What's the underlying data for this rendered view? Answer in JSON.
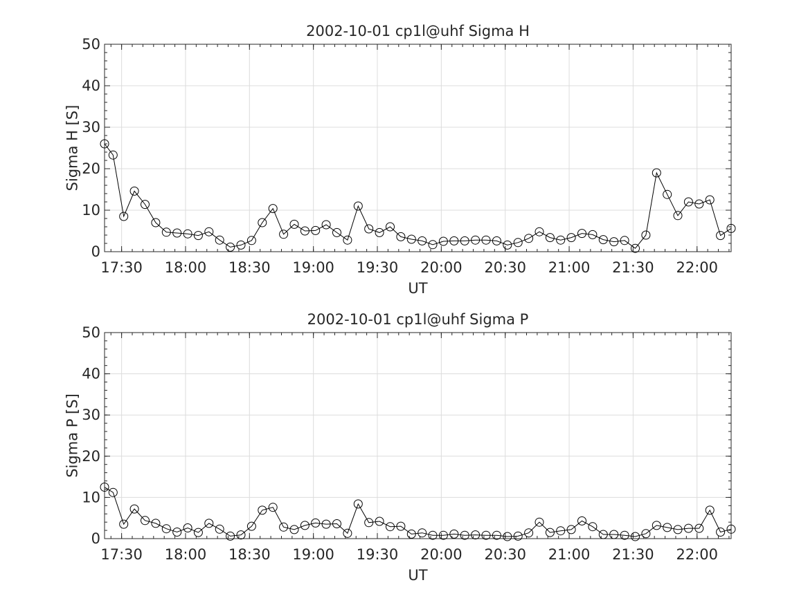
{
  "chart_data": [
    {
      "type": "line",
      "title": "2002-10-01  cp1l@uhf Sigma H",
      "xlabel": "UT",
      "ylabel": "Sigma H [S]",
      "ylim": [
        0,
        50
      ],
      "yticks": [
        "0",
        "10",
        "20",
        "30",
        "40",
        "50"
      ],
      "xlim": [
        "17:22",
        "22:16"
      ],
      "xticks": [
        "17:30",
        "18:00",
        "18:30",
        "19:00",
        "19:30",
        "20:00",
        "20:30",
        "21:00",
        "21:30",
        "22:00"
      ],
      "grid": true,
      "marker": "open-circle",
      "line_color": "#000000",
      "x": [
        "17:22",
        "17:26",
        "17:31",
        "17:36",
        "17:41",
        "17:46",
        "17:51",
        "17:56",
        "18:01",
        "18:06",
        "18:11",
        "18:16",
        "18:21",
        "18:26",
        "18:31",
        "18:36",
        "18:41",
        "18:46",
        "18:51",
        "18:56",
        "19:01",
        "19:06",
        "19:11",
        "19:16",
        "19:21",
        "19:26",
        "19:31",
        "19:36",
        "19:41",
        "19:46",
        "19:51",
        "19:56",
        "20:01",
        "20:06",
        "20:11",
        "20:16",
        "20:21",
        "20:26",
        "20:31",
        "20:36",
        "20:41",
        "20:46",
        "20:51",
        "20:56",
        "21:01",
        "21:06",
        "21:11",
        "21:16",
        "21:21",
        "21:26",
        "21:31",
        "21:36",
        "21:41",
        "21:46",
        "21:51",
        "21:56",
        "22:01",
        "22:06",
        "22:11",
        "22:16"
      ],
      "values": [
        26.0,
        23.3,
        8.5,
        14.6,
        11.4,
        7.0,
        4.7,
        4.5,
        4.3,
        3.9,
        4.8,
        2.8,
        1.1,
        1.6,
        2.7,
        7.0,
        10.4,
        4.2,
        6.6,
        5.0,
        5.1,
        6.5,
        4.6,
        2.8,
        11.0,
        5.5,
        4.6,
        6.0,
        3.6,
        3.0,
        2.6,
        1.7,
        2.5,
        2.6,
        2.6,
        2.8,
        2.8,
        2.6,
        1.6,
        2.2,
        3.2,
        4.8,
        3.4,
        2.8,
        3.4,
        4.4,
        4.1,
        2.9,
        2.4,
        2.7,
        0.8,
        4.0,
        19.0,
        13.8,
        8.7,
        12.0,
        11.5,
        12.5,
        3.9,
        5.6
      ]
    },
    {
      "type": "line",
      "title": "2002-10-01  cp1l@uhf Sigma P",
      "xlabel": "UT",
      "ylabel": "Sigma P [S]",
      "ylim": [
        0,
        50
      ],
      "yticks": [
        "0",
        "10",
        "20",
        "30",
        "40",
        "50"
      ],
      "xlim": [
        "17:22",
        "22:16"
      ],
      "xticks": [
        "17:30",
        "18:00",
        "18:30",
        "19:00",
        "19:30",
        "20:00",
        "20:30",
        "21:00",
        "21:30",
        "22:00"
      ],
      "grid": true,
      "marker": "open-circle",
      "line_color": "#000000",
      "x": [
        "17:22",
        "17:26",
        "17:31",
        "17:36",
        "17:41",
        "17:46",
        "17:51",
        "17:56",
        "18:01",
        "18:06",
        "18:11",
        "18:16",
        "18:21",
        "18:26",
        "18:31",
        "18:36",
        "18:41",
        "18:46",
        "18:51",
        "18:56",
        "19:01",
        "19:06",
        "19:11",
        "19:16",
        "19:21",
        "19:26",
        "19:31",
        "19:36",
        "19:41",
        "19:46",
        "19:51",
        "19:56",
        "20:01",
        "20:06",
        "20:11",
        "20:16",
        "20:21",
        "20:26",
        "20:31",
        "20:36",
        "20:41",
        "20:46",
        "20:51",
        "20:56",
        "21:01",
        "21:06",
        "21:11",
        "21:16",
        "21:21",
        "21:26",
        "21:31",
        "21:36",
        "21:41",
        "21:46",
        "21:51",
        "21:56",
        "22:01",
        "22:06",
        "22:11",
        "22:16"
      ],
      "values": [
        12.5,
        11.2,
        3.5,
        7.2,
        4.4,
        3.7,
        2.4,
        1.6,
        2.6,
        1.5,
        3.7,
        2.3,
        0.6,
        0.9,
        3.0,
        6.9,
        7.6,
        2.8,
        2.2,
        3.2,
        3.8,
        3.5,
        3.6,
        1.3,
        8.4,
        3.9,
        4.2,
        2.9,
        3.0,
        1.1,
        1.4,
        0.8,
        0.8,
        1.1,
        0.8,
        0.9,
        0.8,
        0.8,
        0.5,
        0.6,
        1.4,
        4.0,
        1.5,
        1.9,
        2.2,
        4.3,
        2.9,
        1.0,
        1.0,
        0.8,
        0.5,
        1.2,
        3.2,
        2.7,
        2.2,
        2.5,
        2.5,
        6.9,
        1.6,
        2.3
      ]
    }
  ]
}
